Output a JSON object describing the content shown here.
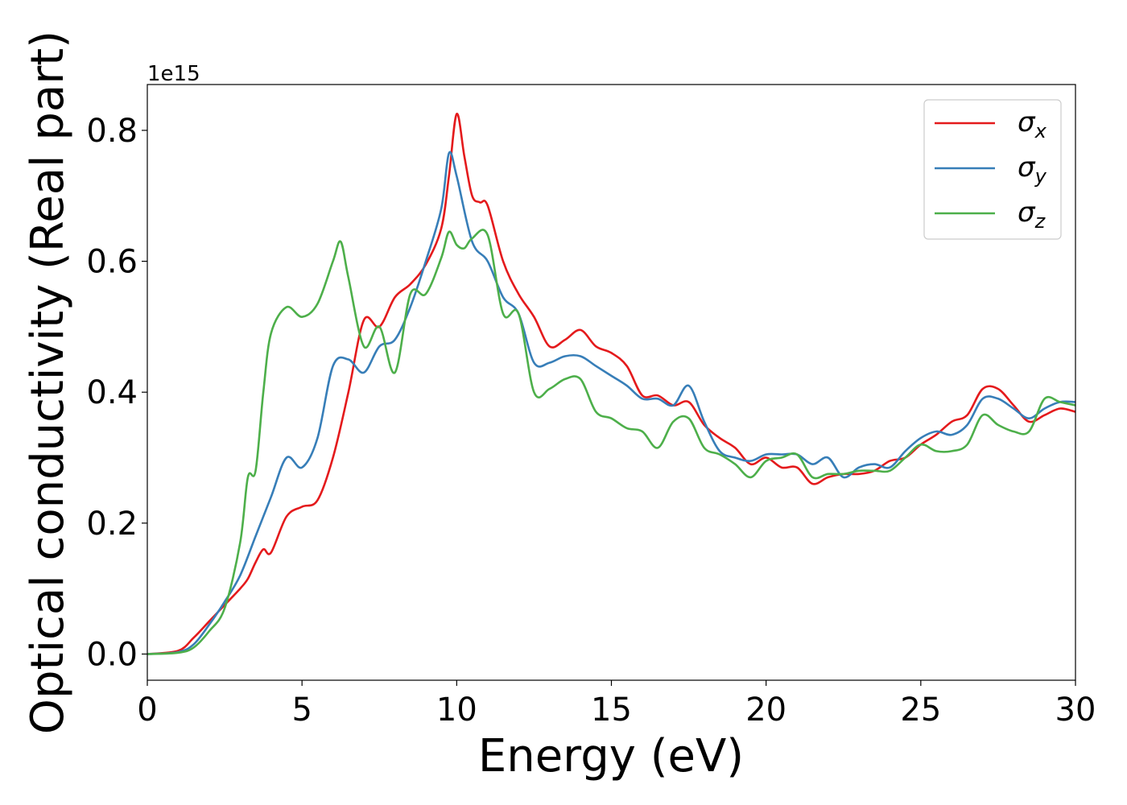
{
  "chart_data": {
    "type": "line",
    "title": "",
    "xlabel": "Energy (eV)",
    "ylabel": "Optical conductivity (Real part)",
    "y_offset_label": "1e15",
    "xlim": [
      0,
      30
    ],
    "ylim": [
      -0.04,
      0.87
    ],
    "xticks": [
      0,
      5,
      10,
      15,
      20,
      25,
      30
    ],
    "xtick_labels": [
      "0",
      "5",
      "10",
      "15",
      "20",
      "25",
      "30"
    ],
    "yticks": [
      0.0,
      0.2,
      0.4,
      0.6,
      0.8
    ],
    "ytick_labels": [
      "0.0",
      "0.2",
      "0.4",
      "0.6",
      "0.8"
    ],
    "grid": false,
    "legend_position": "top-right",
    "series": [
      {
        "name": "σx",
        "symbol": "σ",
        "subscript": "x",
        "color": "#e41a1c",
        "x": [
          0,
          1,
          1.5,
          2,
          2.5,
          3,
          3.25,
          3.5,
          3.75,
          4,
          4.5,
          5,
          5.5,
          6,
          6.5,
          7,
          7.5,
          8,
          8.5,
          9,
          9.5,
          9.75,
          10,
          10.25,
          10.5,
          10.75,
          11,
          11.5,
          12,
          12.5,
          13,
          13.5,
          14,
          14.5,
          15,
          15.5,
          16,
          16.5,
          17,
          17.5,
          18,
          18.5,
          19,
          19.5,
          20,
          20.5,
          21,
          21.5,
          22,
          22.5,
          23,
          23.5,
          24,
          24.5,
          25,
          25.5,
          26,
          26.5,
          27,
          27.5,
          28,
          28.5,
          29,
          29.5,
          30
        ],
        "y": [
          0,
          0.005,
          0.025,
          0.05,
          0.075,
          0.1,
          0.115,
          0.14,
          0.16,
          0.155,
          0.21,
          0.225,
          0.235,
          0.3,
          0.4,
          0.51,
          0.5,
          0.545,
          0.565,
          0.595,
          0.65,
          0.73,
          0.825,
          0.76,
          0.7,
          0.69,
          0.685,
          0.6,
          0.55,
          0.515,
          0.47,
          0.48,
          0.495,
          0.47,
          0.46,
          0.44,
          0.395,
          0.395,
          0.38,
          0.385,
          0.35,
          0.33,
          0.315,
          0.29,
          0.3,
          0.285,
          0.285,
          0.26,
          0.27,
          0.275,
          0.275,
          0.28,
          0.295,
          0.3,
          0.32,
          0.335,
          0.355,
          0.365,
          0.405,
          0.405,
          0.38,
          0.355,
          0.365,
          0.375,
          0.37
        ]
      },
      {
        "name": "σy",
        "symbol": "σ",
        "subscript": "y",
        "color": "#377eb8",
        "x": [
          0,
          1,
          1.5,
          2,
          2.5,
          3,
          3.5,
          4,
          4.5,
          5,
          5.5,
          6,
          6.5,
          7,
          7.5,
          8,
          8.5,
          9,
          9.5,
          9.75,
          10,
          10.5,
          11,
          11.5,
          12,
          12.5,
          13,
          13.5,
          14,
          14.5,
          15,
          15.5,
          16,
          16.5,
          17,
          17.5,
          18,
          18.5,
          19,
          19.5,
          20,
          20.5,
          21,
          21.5,
          22,
          22.5,
          23,
          23.5,
          24,
          24.5,
          25,
          25.5,
          26,
          26.5,
          27,
          27.5,
          28,
          28.5,
          29,
          29.5,
          30
        ],
        "y": [
          0,
          0.003,
          0.015,
          0.045,
          0.08,
          0.12,
          0.18,
          0.24,
          0.3,
          0.285,
          0.33,
          0.44,
          0.45,
          0.43,
          0.47,
          0.48,
          0.53,
          0.6,
          0.68,
          0.765,
          0.73,
          0.63,
          0.6,
          0.545,
          0.52,
          0.445,
          0.445,
          0.455,
          0.455,
          0.44,
          0.425,
          0.41,
          0.39,
          0.39,
          0.38,
          0.41,
          0.355,
          0.31,
          0.3,
          0.295,
          0.305,
          0.305,
          0.305,
          0.29,
          0.3,
          0.27,
          0.285,
          0.29,
          0.285,
          0.31,
          0.33,
          0.34,
          0.335,
          0.35,
          0.39,
          0.39,
          0.375,
          0.36,
          0.375,
          0.385,
          0.385
        ]
      },
      {
        "name": "σz",
        "symbol": "σ",
        "subscript": "z",
        "color": "#4daf4a",
        "x": [
          0,
          1,
          1.5,
          2,
          2.5,
          3,
          3.25,
          3.5,
          3.75,
          4,
          4.5,
          5,
          5.5,
          6,
          6.25,
          6.5,
          7,
          7.5,
          8,
          8.5,
          9,
          9.5,
          9.75,
          10,
          10.25,
          10.5,
          11,
          11.5,
          12,
          12.5,
          13,
          13.5,
          14,
          14.5,
          15,
          15.5,
          16,
          16.5,
          17,
          17.5,
          18,
          18.5,
          19,
          19.5,
          20,
          20.5,
          21,
          21.5,
          22,
          22.5,
          23,
          23.5,
          24,
          24.5,
          25,
          25.5,
          26,
          26.5,
          27,
          27.5,
          28,
          28.5,
          29,
          29.5,
          30
        ],
        "y": [
          0,
          0.002,
          0.01,
          0.035,
          0.07,
          0.17,
          0.27,
          0.28,
          0.4,
          0.49,
          0.53,
          0.515,
          0.535,
          0.6,
          0.63,
          0.575,
          0.47,
          0.5,
          0.43,
          0.55,
          0.55,
          0.605,
          0.645,
          0.625,
          0.62,
          0.635,
          0.64,
          0.52,
          0.52,
          0.4,
          0.405,
          0.42,
          0.42,
          0.37,
          0.36,
          0.345,
          0.34,
          0.315,
          0.355,
          0.36,
          0.315,
          0.305,
          0.29,
          0.27,
          0.295,
          0.3,
          0.305,
          0.27,
          0.275,
          0.275,
          0.28,
          0.28,
          0.28,
          0.3,
          0.32,
          0.31,
          0.31,
          0.32,
          0.365,
          0.35,
          0.34,
          0.34,
          0.39,
          0.385,
          0.38
        ]
      }
    ]
  }
}
